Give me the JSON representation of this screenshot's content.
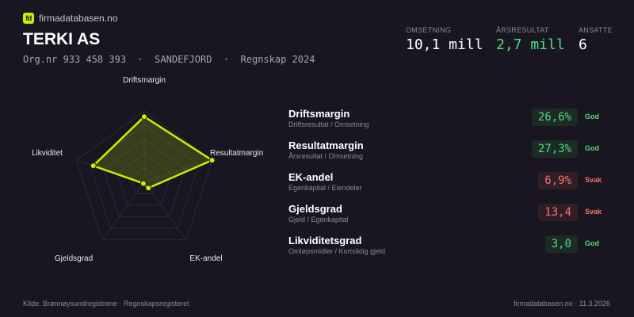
{
  "brand": {
    "logo_text": "fd",
    "name": "firmadatabasen.no"
  },
  "company": {
    "name": "TERKI AS",
    "subtitle": "Org.nr 933 458 393  ·  SANDEFJORD  ·  Regnskap 2024"
  },
  "kpis": [
    {
      "label": "OMSETNING",
      "value": "10,1 mill",
      "color": "#ffffff"
    },
    {
      "label": "ÅRSRESULTAT",
      "value": "2,7 mill",
      "color": "#4ade80"
    },
    {
      "label": "ANSATTE",
      "value": "6",
      "color": "#ffffff"
    }
  ],
  "chart_data": {
    "type": "radar",
    "axes": [
      "Driftsmargin",
      "Resultatmargin",
      "EK-andel",
      "Gjeldsgrad",
      "Likviditet"
    ],
    "values": [
      0.92,
      1.0,
      0.1,
      0.02,
      0.75
    ],
    "range": [
      0,
      1
    ],
    "rings": 5,
    "color": "#c8f000"
  },
  "metrics": [
    {
      "name": "Driftsmargin",
      "desc": "Driftsresultat / Omsetning",
      "value": "26,6%",
      "status": "God",
      "tone": "good"
    },
    {
      "name": "Resultatmargin",
      "desc": "Årsresultat / Omsetning",
      "value": "27,3%",
      "status": "God",
      "tone": "good"
    },
    {
      "name": "EK-andel",
      "desc": "Egenkapital / Eiendeler",
      "value": "6,9%",
      "status": "Svak",
      "tone": "bad"
    },
    {
      "name": "Gjeldsgrad",
      "desc": "Gjeld / Egenkapital",
      "value": "13,4",
      "status": "Svak",
      "tone": "bad"
    },
    {
      "name": "Likviditetsgrad",
      "desc": "Omløpsmidler / Kortsiktig gjeld",
      "value": "3,0",
      "status": "God",
      "tone": "good"
    }
  ],
  "colors": {
    "good": "#4ade80",
    "good_bg": "#1c2b26",
    "bad": "#f87171",
    "bad_bg": "#2f1e25"
  },
  "footer": {
    "source": "Kilde: Brønnøysundregistrene · Regnskapsregisteret",
    "site": "firmadatabasen.no · 11.3.2026"
  }
}
